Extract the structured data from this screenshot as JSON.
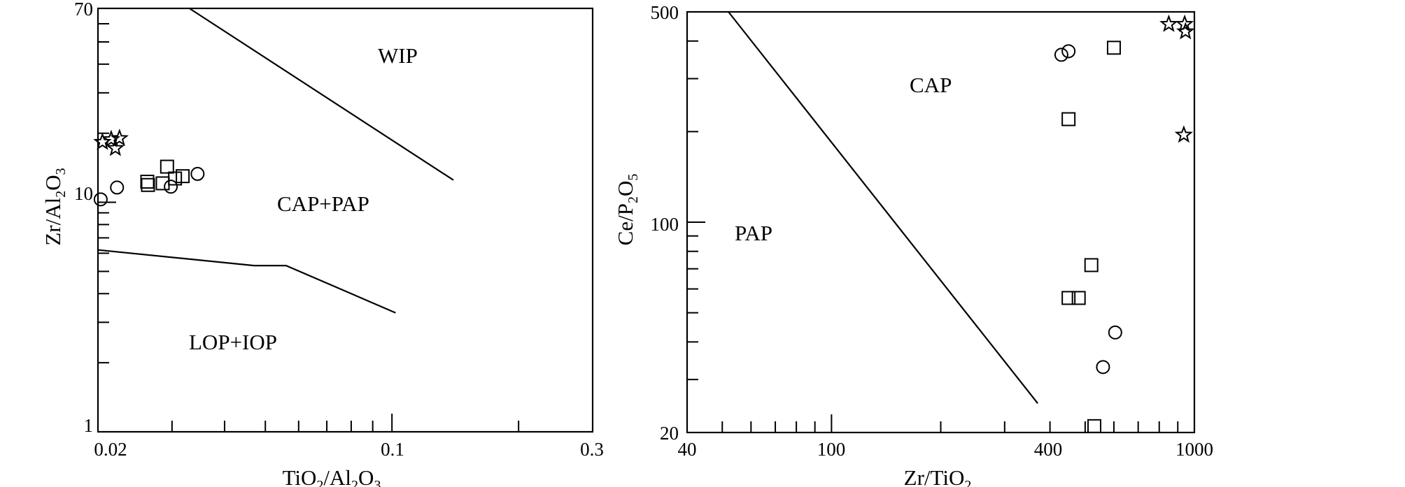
{
  "chart_data": [
    {
      "type": "scatter",
      "xscale": "log",
      "yscale": "log",
      "xlim": [
        0.02,
        0.3
      ],
      "ylim": [
        1,
        70
      ],
      "xlabel": "TiO2/Al2O3",
      "ylabel": "Zr/Al2O3",
      "x_ticklabels": [
        "0.02",
        "0.1",
        "0.3"
      ],
      "y_ticklabels": [
        "1",
        "10",
        "70"
      ],
      "fields": [
        "WIP",
        "CAP+PAP",
        "LOP+IOP"
      ],
      "boundaries": [
        [
          [
            0.033,
            70
          ],
          [
            0.14,
            12.5
          ]
        ],
        [
          [
            0.02,
            6.2
          ],
          [
            0.047,
            5.3
          ],
          [
            0.056,
            5.3
          ],
          [
            0.102,
            3.3
          ]
        ]
      ],
      "series": [
        {
          "marker": "star",
          "points": [
            [
              0.0205,
              18.3
            ],
            [
              0.0215,
              18.8
            ],
            [
              0.022,
              17.2
            ],
            [
              0.0225,
              19.0
            ]
          ]
        },
        {
          "marker": "square",
          "points": [
            [
              0.0262,
              12.3
            ],
            [
              0.0263,
              11.9
            ],
            [
              0.0285,
              12.1
            ],
            [
              0.0305,
              12.7
            ],
            [
              0.0292,
              14.3
            ],
            [
              0.0318,
              13.0
            ]
          ]
        },
        {
          "marker": "circle",
          "points": [
            [
              0.0203,
              10.3
            ],
            [
              0.0222,
              11.6
            ],
            [
              0.0298,
              11.7
            ],
            [
              0.0345,
              13.3
            ]
          ]
        }
      ]
    },
    {
      "type": "scatter",
      "xscale": "log",
      "yscale": "log",
      "xlim": [
        40,
        1000
      ],
      "ylim": [
        20,
        500
      ],
      "xlabel": "Zr/TiO2",
      "ylabel": "Ce/P2O5",
      "x_ticklabels": [
        "40",
        "100",
        "400",
        "1000"
      ],
      "y_ticklabels": [
        "20",
        "100",
        "500"
      ],
      "fields": [
        "CAP",
        "PAP"
      ],
      "boundaries": [
        [
          [
            52,
            500
          ],
          [
            370,
            25
          ]
        ]
      ],
      "series": [
        {
          "marker": "star",
          "points": [
            [
              850,
              455
            ],
            [
              940,
              455
            ],
            [
              945,
              430
            ],
            [
              935,
              195
            ]
          ]
        },
        {
          "marker": "square",
          "points": [
            [
              600,
              380
            ],
            [
              450,
              220
            ],
            [
              520,
              72
            ],
            [
              450,
              56
            ],
            [
              480,
              56
            ],
            [
              530,
              21
            ]
          ]
        },
        {
          "marker": "circle",
          "points": [
            [
              430,
              360
            ],
            [
              450,
              370
            ],
            [
              605,
              43
            ],
            [
              560,
              33
            ]
          ]
        }
      ]
    }
  ]
}
